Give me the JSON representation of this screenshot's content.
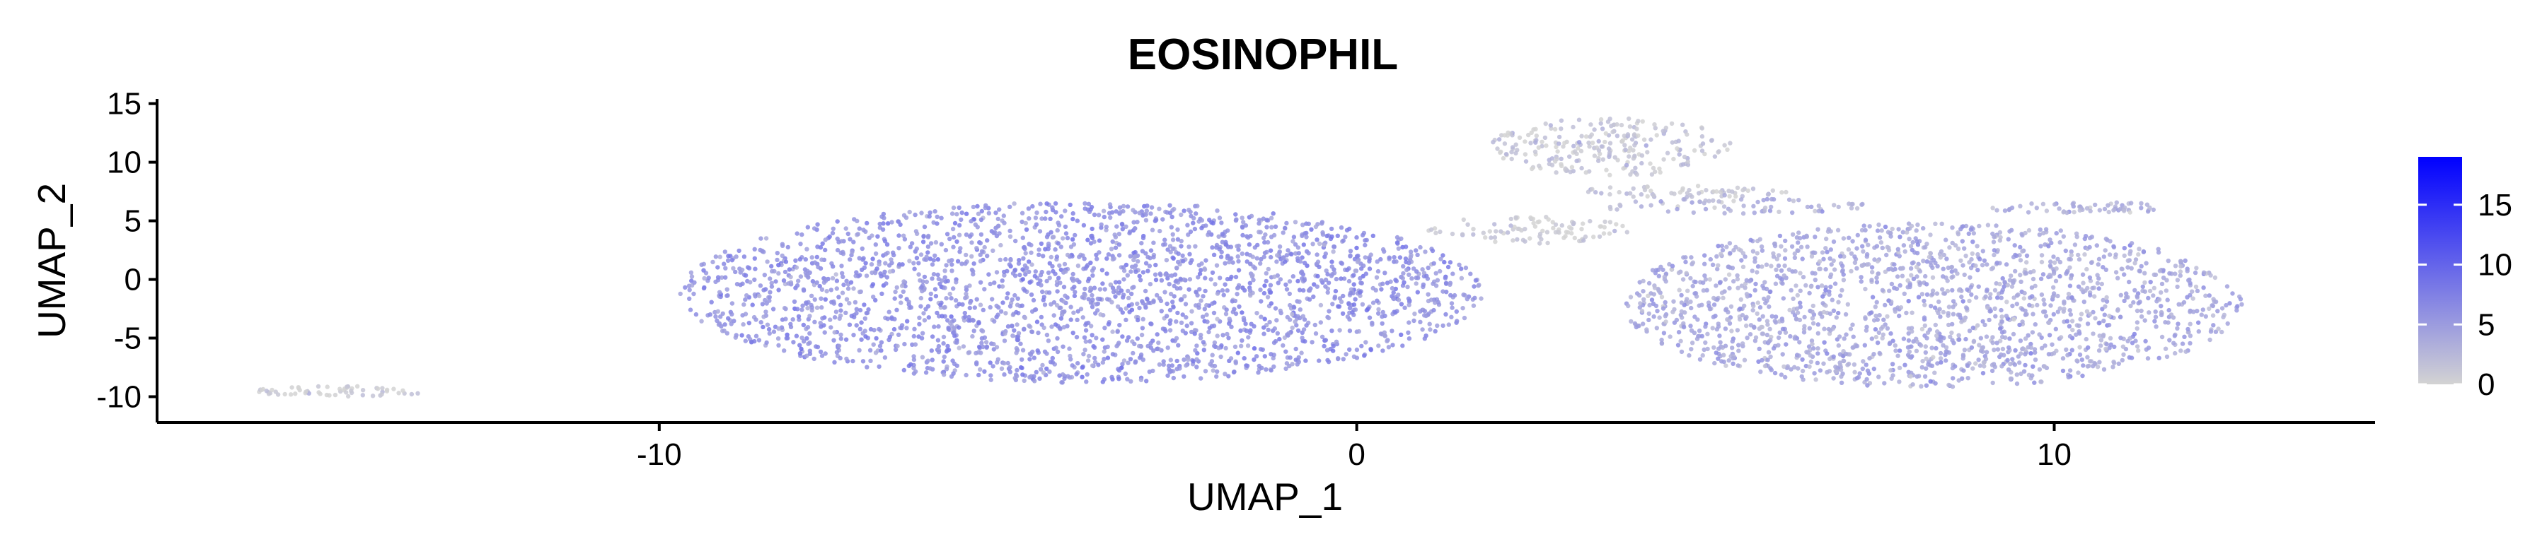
{
  "chart_data": {
    "type": "scatter",
    "title": "EOSINOPHIL",
    "xlabel": "UMAP_1",
    "ylabel": "UMAP_2",
    "xlim": [
      -17.2,
      14.6
    ],
    "ylim": [
      -12.2,
      15.4
    ],
    "xticks": [
      -10,
      0,
      10
    ],
    "yticks": [
      15,
      10,
      5,
      0,
      -5,
      -10
    ],
    "grid": false,
    "legend": {
      "type": "colorbar",
      "placement": "right",
      "range": [
        0,
        19
      ],
      "ticks": [
        0,
        5,
        10,
        15
      ],
      "colors": {
        "low": "#d3d3d3",
        "high": "#0000ff"
      }
    },
    "clusters": [
      {
        "label": "large left mass",
        "x": [
          -9.7,
          1.8
        ],
        "y": [
          -8.8,
          6.6
        ],
        "expression": "moderate-high",
        "mean_value": 6
      },
      {
        "label": "right lower mass",
        "x": [
          3.8,
          12.7
        ],
        "y": [
          -9.2,
          4.8
        ],
        "expression": "moderate",
        "mean_value": 4
      },
      {
        "label": "central bridge",
        "x": [
          1.0,
          3.9
        ],
        "y": [
          3.0,
          5.4
        ],
        "expression": "low",
        "mean_value": 0.5
      },
      {
        "label": "top arc",
        "x": [
          1.9,
          5.4
        ],
        "y": [
          8.8,
          13.8
        ],
        "expression": "low",
        "mean_value": 1
      },
      {
        "label": "thin streak 1",
        "x": [
          3.1,
          6.2
        ],
        "y": [
          7.0,
          8.0
        ],
        "expression": "low",
        "mean_value": 1
      },
      {
        "label": "thin streak 2",
        "x": [
          3.5,
          7.4
        ],
        "y": [
          5.6,
          6.9
        ],
        "expression": "moderate",
        "mean_value": 3
      },
      {
        "label": "far right small",
        "x": [
          9.0,
          11.8
        ],
        "y": [
          5.6,
          6.6
        ],
        "expression": "moderate",
        "mean_value": 3
      },
      {
        "label": "far left curve",
        "x": [
          -15.8,
          -13.3
        ],
        "y": [
          -10.0,
          -9.1
        ],
        "expression": "low",
        "mean_value": 0
      }
    ]
  }
}
